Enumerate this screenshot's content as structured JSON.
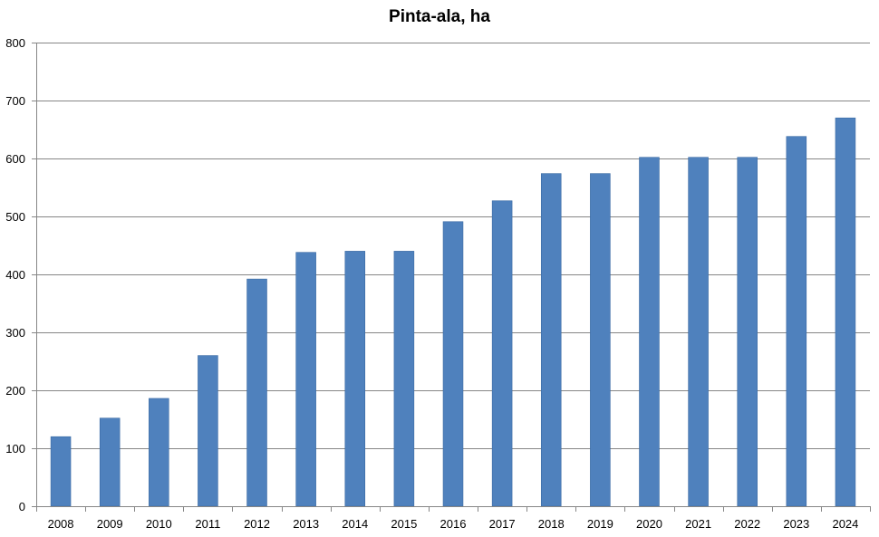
{
  "chart_data": {
    "type": "bar",
    "title": "Pinta-ala, ha",
    "xlabel": "",
    "ylabel": "",
    "categories": [
      "2008",
      "2009",
      "2010",
      "2011",
      "2012",
      "2013",
      "2014",
      "2015",
      "2016",
      "2017",
      "2018",
      "2019",
      "2020",
      "2021",
      "2022",
      "2023",
      "2024"
    ],
    "values": [
      120,
      152,
      186,
      260,
      392,
      438,
      440,
      440,
      491,
      527,
      574,
      574,
      602,
      602,
      602,
      638,
      670
    ],
    "ylim": [
      0,
      800
    ],
    "yticks": [
      0,
      100,
      200,
      300,
      400,
      500,
      600,
      700,
      800
    ],
    "grid": true,
    "legend": "none",
    "bar_color": "#4f81bd",
    "bar_edge_color": "#3a6aa3",
    "grid_color": "#868686"
  }
}
